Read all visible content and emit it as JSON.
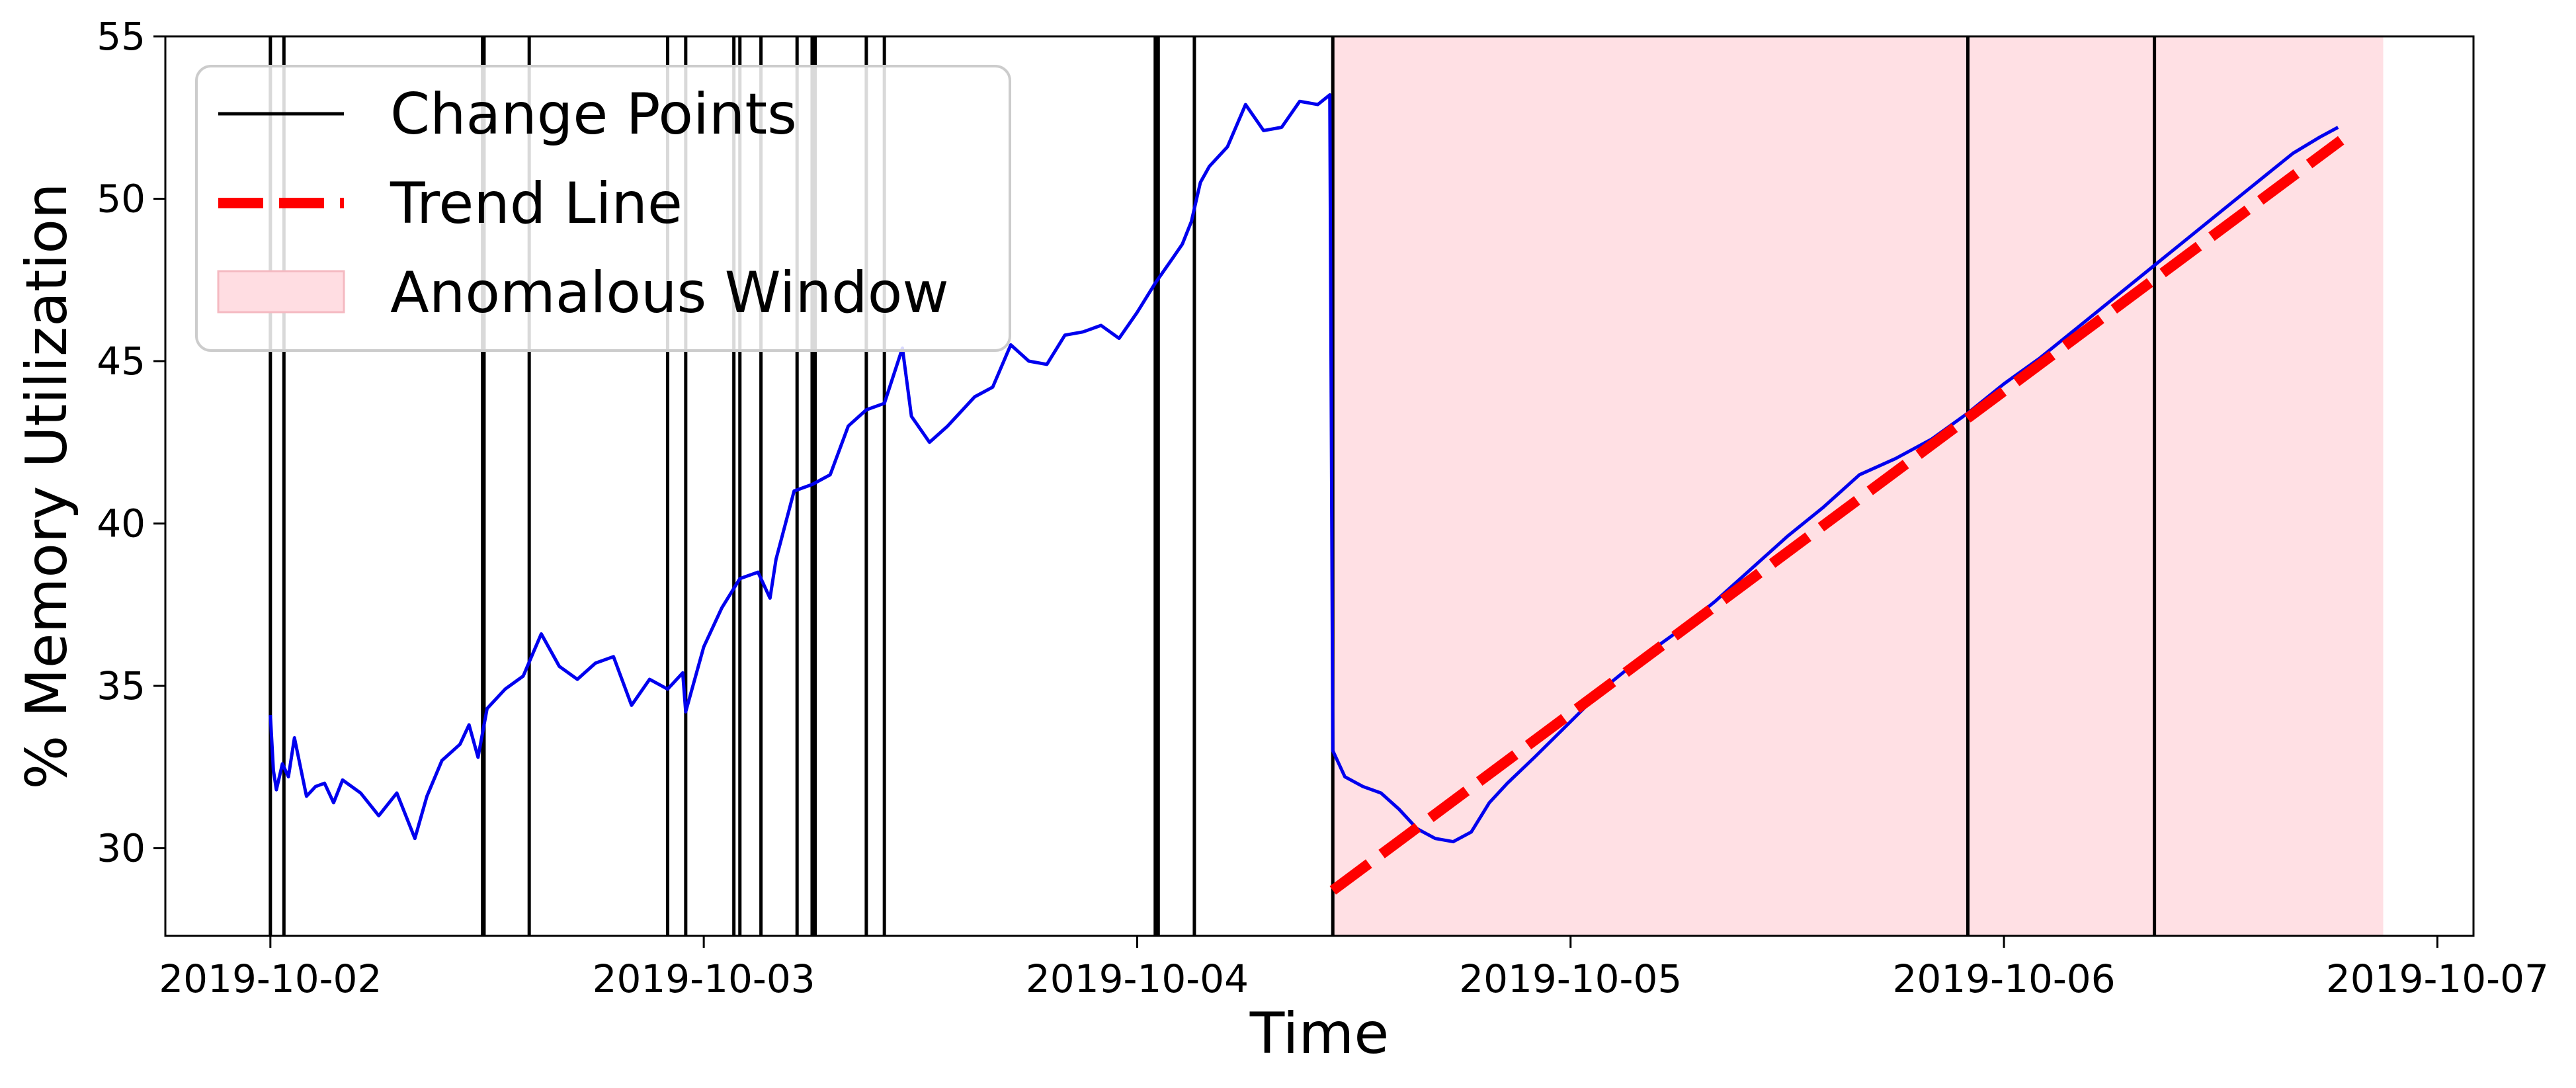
{
  "chart_data": {
    "type": "line",
    "title": "",
    "xlabel": "Time",
    "ylabel": "% Memory Utilization",
    "ylim": [
      27.3,
      55
    ],
    "xlim": [
      "2019-10-01T18:11",
      "2019-10-07T02:00"
    ],
    "x_ticks": [
      "2019-10-02",
      "2019-10-03",
      "2019-10-04",
      "2019-10-05",
      "2019-10-06",
      "2019-10-07"
    ],
    "y_ticks": [
      30,
      35,
      40,
      45,
      50,
      55
    ],
    "grid": false,
    "legend": {
      "position": "top-left",
      "entries": [
        {
          "label": "Change Points",
          "style": "line",
          "color": "#000000"
        },
        {
          "label": "Trend Line",
          "style": "dashed",
          "color": "#ff0000"
        },
        {
          "label": "Anomalous Window",
          "style": "patch",
          "color": "#ffdde2"
        }
      ]
    },
    "series": [
      {
        "name": "",
        "color": "#0000ee",
        "points": [
          [
            "2019-10-02T00:00",
            34.1
          ],
          [
            "2019-10-02T00:10",
            32.4
          ],
          [
            "2019-10-02T00:20",
            31.8
          ],
          [
            "2019-10-02T00:40",
            32.6
          ],
          [
            "2019-10-02T01:00",
            32.2
          ],
          [
            "2019-10-02T01:20",
            33.4
          ],
          [
            "2019-10-02T01:40",
            32.5
          ],
          [
            "2019-10-02T02:00",
            31.6
          ],
          [
            "2019-10-02T02:30",
            31.9
          ],
          [
            "2019-10-02T03:00",
            32.0
          ],
          [
            "2019-10-02T03:30",
            31.4
          ],
          [
            "2019-10-02T04:00",
            32.1
          ],
          [
            "2019-10-02T05:00",
            31.7
          ],
          [
            "2019-10-02T06:00",
            31.0
          ],
          [
            "2019-10-02T07:00",
            31.7
          ],
          [
            "2019-10-02T08:00",
            30.3
          ],
          [
            "2019-10-02T08:40",
            31.6
          ],
          [
            "2019-10-02T09:30",
            32.7
          ],
          [
            "2019-10-02T10:30",
            33.2
          ],
          [
            "2019-10-02T11:00",
            33.8
          ],
          [
            "2019-10-02T11:30",
            32.8
          ],
          [
            "2019-10-02T12:00",
            34.3
          ],
          [
            "2019-10-02T13:00",
            34.9
          ],
          [
            "2019-10-02T14:00",
            35.3
          ],
          [
            "2019-10-02T15:00",
            36.6
          ],
          [
            "2019-10-02T16:00",
            35.6
          ],
          [
            "2019-10-02T17:00",
            35.2
          ],
          [
            "2019-10-02T18:00",
            35.7
          ],
          [
            "2019-10-02T19:00",
            35.9
          ],
          [
            "2019-10-02T20:00",
            34.4
          ],
          [
            "2019-10-02T21:00",
            35.2
          ],
          [
            "2019-10-02T22:00",
            34.9
          ],
          [
            "2019-10-02T22:50",
            35.4
          ],
          [
            "2019-10-02T23:00",
            34.2
          ],
          [
            "2019-10-03T00:00",
            36.2
          ],
          [
            "2019-10-03T01:00",
            37.4
          ],
          [
            "2019-10-03T02:00",
            38.3
          ],
          [
            "2019-10-03T03:00",
            38.5
          ],
          [
            "2019-10-03T03:40",
            37.7
          ],
          [
            "2019-10-03T04:00",
            38.9
          ],
          [
            "2019-10-03T05:00",
            41.0
          ],
          [
            "2019-10-03T06:00",
            41.2
          ],
          [
            "2019-10-03T07:00",
            41.5
          ],
          [
            "2019-10-03T08:00",
            43.0
          ],
          [
            "2019-10-03T09:00",
            43.5
          ],
          [
            "2019-10-03T10:00",
            43.7
          ],
          [
            "2019-10-03T11:00",
            45.4
          ],
          [
            "2019-10-03T11:30",
            43.3
          ],
          [
            "2019-10-03T12:30",
            42.5
          ],
          [
            "2019-10-03T13:30",
            43.0
          ],
          [
            "2019-10-03T15:00",
            43.9
          ],
          [
            "2019-10-03T16:00",
            44.2
          ],
          [
            "2019-10-03T17:00",
            45.5
          ],
          [
            "2019-10-03T18:00",
            45.0
          ],
          [
            "2019-10-03T19:00",
            44.9
          ],
          [
            "2019-10-03T20:00",
            45.8
          ],
          [
            "2019-10-03T21:00",
            45.9
          ],
          [
            "2019-10-03T22:00",
            46.1
          ],
          [
            "2019-10-03T23:00",
            45.7
          ],
          [
            "2019-10-04T00:00",
            46.5
          ],
          [
            "2019-10-04T01:00",
            47.4
          ],
          [
            "2019-10-04T02:00",
            48.2
          ],
          [
            "2019-10-04T02:30",
            48.6
          ],
          [
            "2019-10-04T03:00",
            49.3
          ],
          [
            "2019-10-04T03:30",
            50.5
          ],
          [
            "2019-10-04T04:00",
            51.0
          ],
          [
            "2019-10-04T05:00",
            51.6
          ],
          [
            "2019-10-04T06:00",
            52.9
          ],
          [
            "2019-10-04T07:00",
            52.1
          ],
          [
            "2019-10-04T08:00",
            52.2
          ],
          [
            "2019-10-04T09:00",
            53.0
          ],
          [
            "2019-10-04T10:00",
            52.9
          ],
          [
            "2019-10-04T10:40",
            53.2
          ],
          [
            "2019-10-04T10:50",
            33.0
          ],
          [
            "2019-10-04T11:30",
            32.2
          ],
          [
            "2019-10-04T12:30",
            31.9
          ],
          [
            "2019-10-04T13:30",
            31.7
          ],
          [
            "2019-10-04T14:30",
            31.2
          ],
          [
            "2019-10-04T15:30",
            30.6
          ],
          [
            "2019-10-04T16:30",
            30.3
          ],
          [
            "2019-10-04T17:30",
            30.2
          ],
          [
            "2019-10-04T18:30",
            30.5
          ],
          [
            "2019-10-04T19:30",
            31.4
          ],
          [
            "2019-10-04T20:30",
            32.0
          ],
          [
            "2019-10-04T22:00",
            32.8
          ],
          [
            "2019-10-05T00:00",
            33.9
          ],
          [
            "2019-10-05T02:00",
            35.0
          ],
          [
            "2019-10-05T04:00",
            35.9
          ],
          [
            "2019-10-05T06:00",
            36.7
          ],
          [
            "2019-10-05T08:00",
            37.6
          ],
          [
            "2019-10-05T10:00",
            38.6
          ],
          [
            "2019-10-05T12:00",
            39.6
          ],
          [
            "2019-10-05T14:00",
            40.5
          ],
          [
            "2019-10-05T16:00",
            41.5
          ],
          [
            "2019-10-05T18:00",
            42.0
          ],
          [
            "2019-10-05T20:00",
            42.6
          ],
          [
            "2019-10-05T22:00",
            43.4
          ],
          [
            "2019-10-06T00:00",
            44.3
          ],
          [
            "2019-10-06T02:00",
            45.1
          ],
          [
            "2019-10-06T04:00",
            46.0
          ],
          [
            "2019-10-06T06:00",
            46.9
          ],
          [
            "2019-10-06T08:00",
            47.8
          ],
          [
            "2019-10-06T10:00",
            48.7
          ],
          [
            "2019-10-06T12:00",
            49.6
          ],
          [
            "2019-10-06T14:00",
            50.5
          ],
          [
            "2019-10-06T16:00",
            51.4
          ],
          [
            "2019-10-06T17:30",
            51.9
          ],
          [
            "2019-10-06T18:30",
            52.2
          ]
        ]
      }
    ],
    "trend_line": {
      "start": [
        "2019-10-04T10:50",
        28.7
      ],
      "end": [
        "2019-10-06T18:40",
        51.8
      ]
    },
    "anomalous_window": {
      "start": "2019-10-04T10:50",
      "end": "2019-10-06T21:00"
    },
    "change_points": [
      "2019-10-02T00:00",
      "2019-10-02T00:45",
      "2019-10-02T11:45",
      "2019-10-02T11:50",
      "2019-10-02T14:20",
      "2019-10-02T22:00",
      "2019-10-02T23:00",
      "2019-10-03T01:40",
      "2019-10-03T02:00",
      "2019-10-03T03:10",
      "2019-10-03T05:10",
      "2019-10-03T06:00",
      "2019-10-03T06:10",
      "2019-10-03T09:00",
      "2019-10-03T10:00",
      "2019-10-04T01:00",
      "2019-10-04T01:10",
      "2019-10-04T03:10",
      "2019-10-04T10:50",
      "2019-10-05T22:00",
      "2019-10-06T08:20"
    ]
  }
}
